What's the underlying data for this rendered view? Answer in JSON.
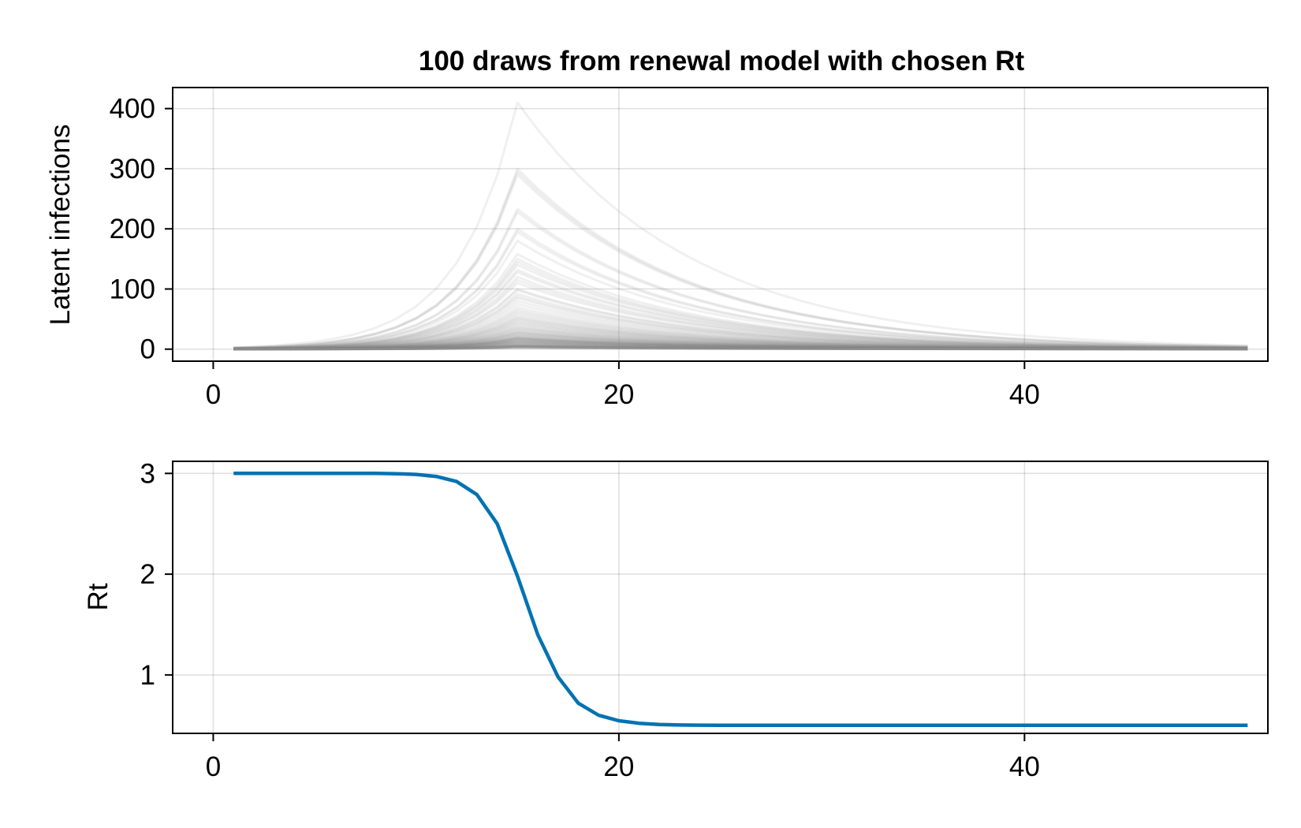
{
  "chart_data": [
    {
      "type": "line",
      "title": "100 draws from renewal model with chosen Rt",
      "xlabel": "",
      "ylabel": "Latent infections",
      "xlim": [
        -2,
        52
      ],
      "ylim": [
        -20,
        435
      ],
      "x_ticks": [
        0,
        20,
        40
      ],
      "y_ticks": [
        0,
        100,
        200,
        300,
        400
      ],
      "grid": true,
      "legend": "none",
      "series_count": 100,
      "series_color": "#8c8c8c",
      "x_start": 1,
      "x_end": 51,
      "peak_day": 15,
      "peak_values": [
        410,
        300,
        295,
        290,
        233,
        228,
        200,
        195,
        180,
        158,
        150,
        145,
        140,
        132,
        128,
        120,
        115,
        110,
        100,
        98,
        92,
        88,
        85,
        80,
        75,
        70,
        66,
        63,
        60,
        57,
        54,
        52,
        50,
        48,
        46,
        44,
        42,
        40,
        38,
        36,
        35,
        33,
        32,
        30,
        29,
        28,
        27,
        26,
        25,
        24,
        23,
        22,
        21,
        20,
        19.5,
        19,
        18.5,
        18,
        17.5,
        17,
        16.5,
        16,
        15.5,
        15,
        14.5,
        14,
        13.5,
        13,
        12.5,
        12,
        11.5,
        11,
        10.5,
        10,
        9.5,
        9,
        8.5,
        8,
        7.5,
        7,
        6.5,
        6,
        5.8,
        5.6,
        5.4,
        5.2,
        5,
        4.8,
        4.6,
        4.4,
        4.2,
        4,
        3.8,
        3.6,
        3.4,
        3.2,
        3,
        2.8,
        2.6,
        2.4
      ]
    },
    {
      "type": "line",
      "title": "",
      "xlabel": "",
      "ylabel": "Rt",
      "xlim": [
        -2,
        52
      ],
      "ylim": [
        0.42,
        3.12
      ],
      "x_ticks": [
        0,
        20,
        40
      ],
      "y_ticks": [
        1,
        2,
        3
      ],
      "grid": true,
      "legend": "none",
      "series_color": "#0072b2",
      "x": [
        1,
        2,
        3,
        4,
        5,
        6,
        7,
        8,
        9,
        10,
        11,
        12,
        13,
        14,
        15,
        16,
        17,
        18,
        19,
        20,
        21,
        22,
        23,
        24,
        25,
        26,
        27,
        28,
        29,
        30,
        31,
        32,
        33,
        34,
        35,
        36,
        37,
        38,
        39,
        40,
        41,
        42,
        43,
        44,
        45,
        46,
        47,
        48,
        49,
        50,
        51
      ],
      "values": [
        3.0,
        3.0,
        3.0,
        3.0,
        3.0,
        3.0,
        3.0,
        3.0,
        2.997,
        2.99,
        2.97,
        2.92,
        2.79,
        2.5,
        1.98,
        1.4,
        0.98,
        0.72,
        0.6,
        0.545,
        0.52,
        0.508,
        0.503,
        0.501,
        0.5,
        0.5,
        0.5,
        0.5,
        0.5,
        0.5,
        0.5,
        0.5,
        0.5,
        0.5,
        0.5,
        0.5,
        0.5,
        0.5,
        0.5,
        0.5,
        0.5,
        0.5,
        0.5,
        0.5,
        0.5,
        0.5,
        0.5,
        0.5,
        0.5,
        0.5,
        0.5
      ]
    }
  ]
}
